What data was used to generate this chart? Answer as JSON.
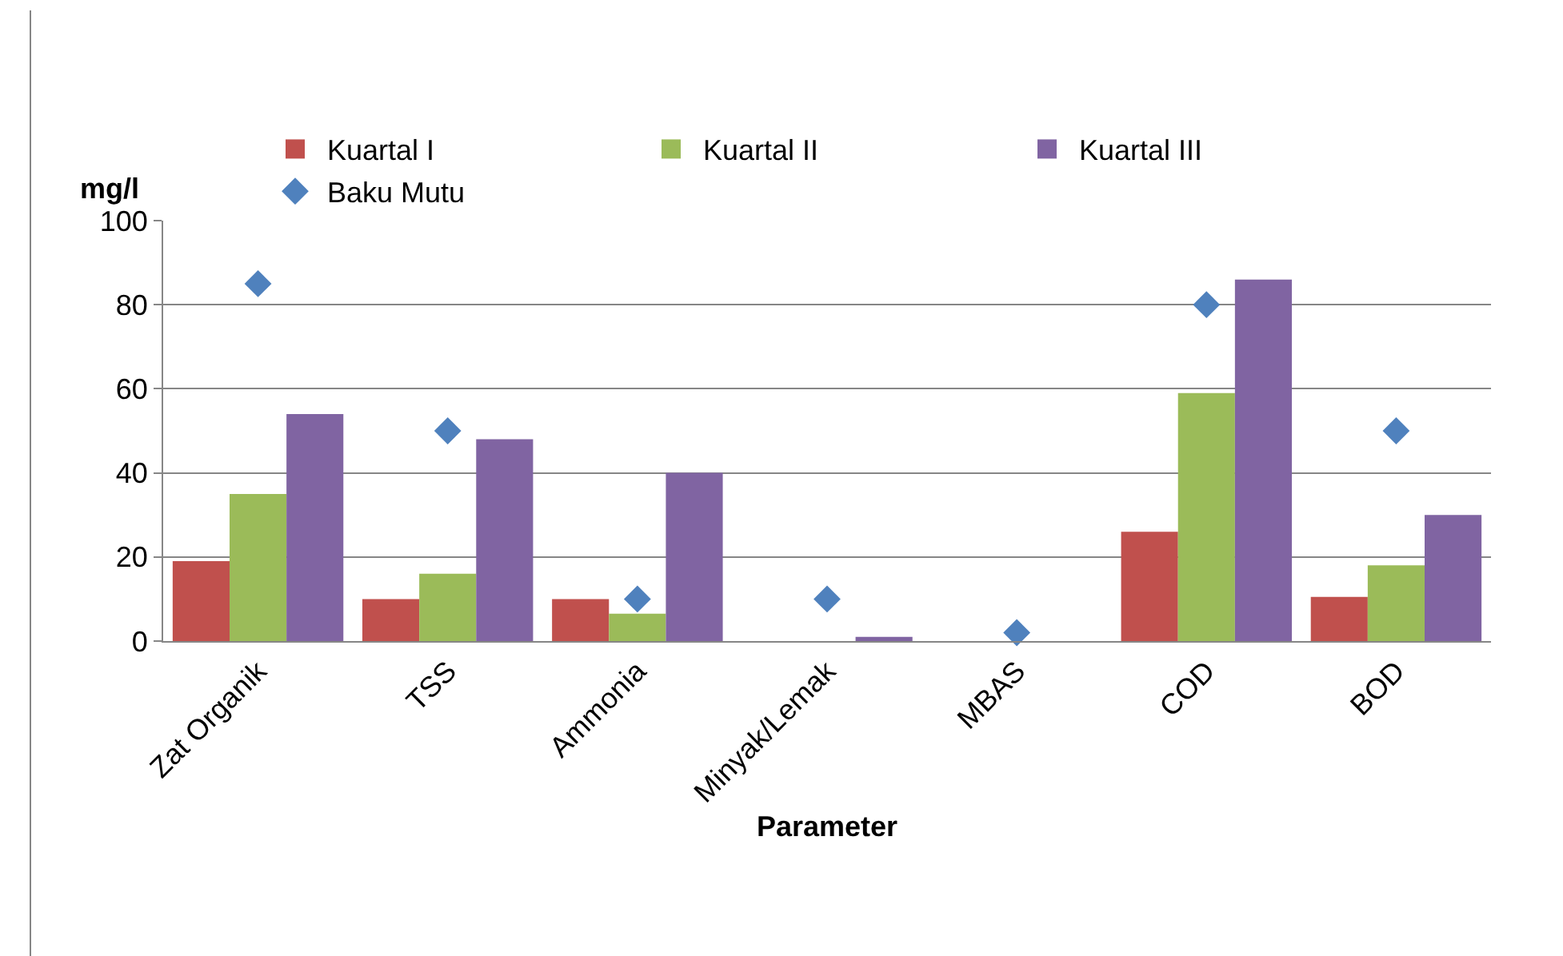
{
  "chart_data": {
    "type": "bar",
    "ylabel": "mg/l",
    "xlabel": "Parameter",
    "categories": [
      "Zat Organik",
      "TSS",
      "Ammonia",
      "Minyak/Lemak",
      "MBAS",
      "COD",
      "BOD"
    ],
    "series": [
      {
        "name": "Kuartal I",
        "color": "#c0504d",
        "values": [
          19,
          10,
          10,
          0,
          0,
          26,
          10.5
        ]
      },
      {
        "name": "Kuartal II",
        "color": "#9bbb59",
        "values": [
          35,
          16,
          6.5,
          0,
          0,
          59,
          18
        ]
      },
      {
        "name": "Kuartal III",
        "color": "#8064a2",
        "values": [
          54,
          48,
          40,
          1,
          0,
          86,
          30
        ]
      },
      {
        "name": "Baku Mutu",
        "type": "scatter",
        "marker": "diamond",
        "color": "#4f81bd",
        "values": [
          85,
          50,
          10,
          10,
          2,
          80,
          50
        ]
      }
    ],
    "ylim": [
      0,
      100
    ],
    "yticks": [
      0,
      20,
      40,
      60,
      80,
      100
    ],
    "grid": "y",
    "legend": "top"
  }
}
